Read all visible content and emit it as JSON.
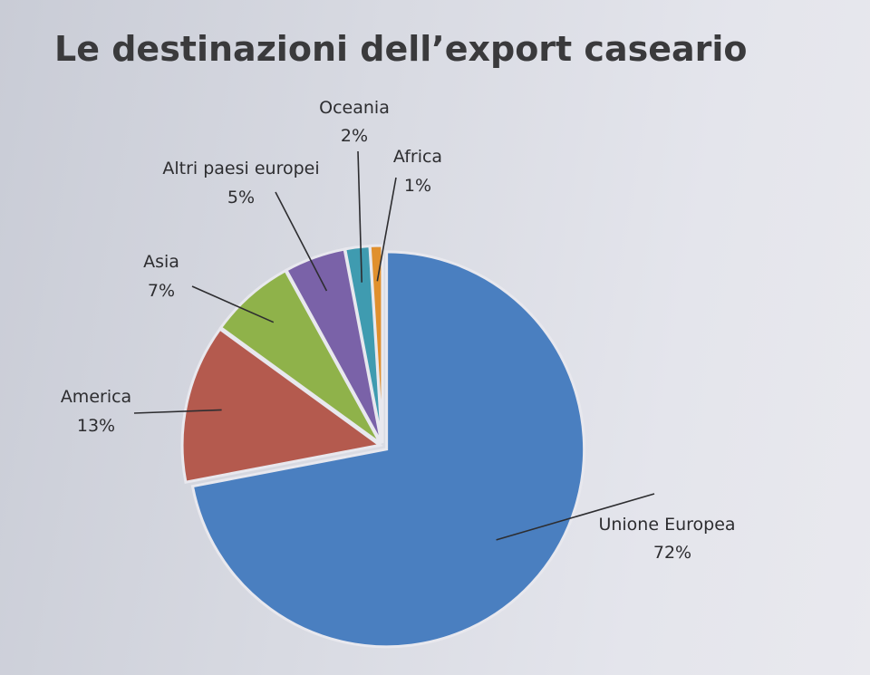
{
  "title": "Le destinazioni dell’export caseario",
  "chart_data": {
    "type": "pie",
    "title": "Le destinazioni dell’export caseario",
    "slices": [
      {
        "name": "Unione Europea",
        "value": 72,
        "label": "72%",
        "color": "#4a7fc0"
      },
      {
        "name": "America",
        "value": 13,
        "label": "13%",
        "color": "#b45a4e"
      },
      {
        "name": "Asia",
        "value": 7,
        "label": "7%",
        "color": "#8fb24a"
      },
      {
        "name": "Altri paesi europei",
        "value": 5,
        "label": "5%",
        "color": "#7a62a8"
      },
      {
        "name": "Oceania",
        "value": 2,
        "label": "2%",
        "color": "#3f9bb0"
      },
      {
        "name": "Africa",
        "value": 1,
        "label": "1%",
        "color": "#e0902e"
      }
    ],
    "legend": "labels outside slices with leader lines"
  }
}
